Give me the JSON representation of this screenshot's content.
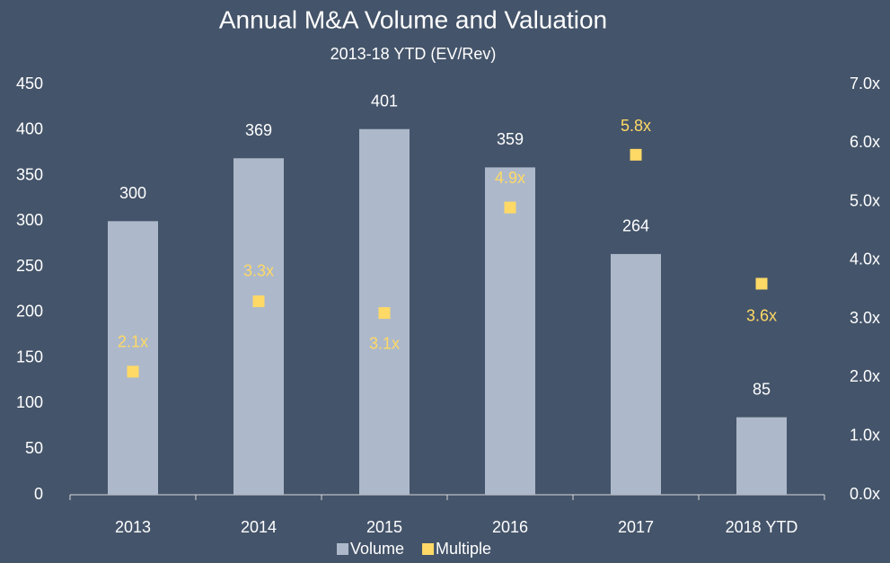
{
  "chart_data": {
    "type": "bar",
    "title": "Annual M&A Volume and Valuation",
    "subtitle": "2013-18 YTD (EV/Rev)",
    "categories": [
      "2013",
      "2014",
      "2015",
      "2016",
      "2017",
      "2018 YTD"
    ],
    "series": [
      {
        "name": "Volume",
        "type": "bar",
        "color": "#adb9ca",
        "values": [
          300,
          369,
          401,
          359,
          264,
          85
        ]
      },
      {
        "name": "Multiple",
        "type": "scatter",
        "axis": "y2",
        "color": "#ffd966",
        "values": [
          2.1,
          3.3,
          3.1,
          4.9,
          5.8,
          3.6
        ],
        "value_labels": [
          "2.1x",
          "3.3x",
          "3.1x",
          "4.9x",
          "5.8x",
          "3.6x"
        ]
      }
    ],
    "ylim": [
      0,
      450
    ],
    "yticks": [
      0,
      50,
      100,
      150,
      200,
      250,
      300,
      350,
      400,
      450
    ],
    "y2lim": [
      0,
      7
    ],
    "y2ticks": [
      {
        "value": 0,
        "label": "0.0x"
      },
      {
        "value": 1,
        "label": "1.0x"
      },
      {
        "value": 2,
        "label": "2.0x"
      },
      {
        "value": 3,
        "label": "3.0x"
      },
      {
        "value": 4,
        "label": "4.0x"
      },
      {
        "value": 5,
        "label": "5.0x"
      },
      {
        "value": 6,
        "label": "6.0x"
      },
      {
        "value": 7,
        "label": "7.0x"
      }
    ],
    "grid": false,
    "legend": "bottom"
  }
}
